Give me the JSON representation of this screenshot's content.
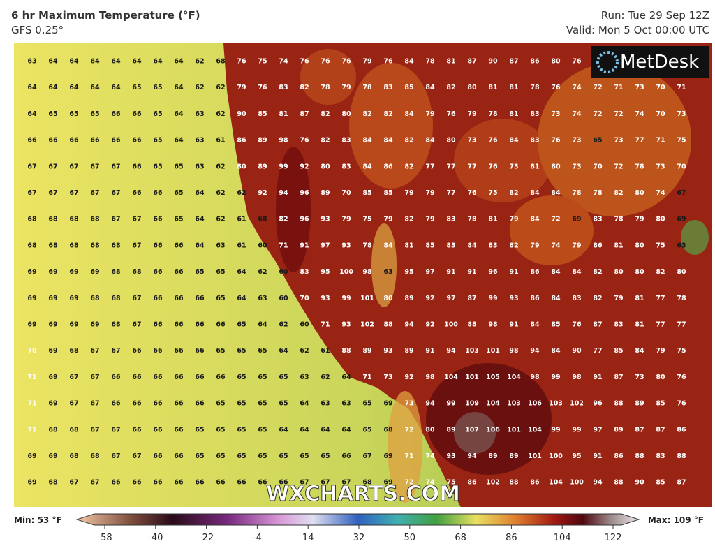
{
  "header": {
    "title": "6 hr Maximum Temperature (°F)",
    "subtitle": "GFS 0.25°",
    "run": "Run: Tue 29 Sep 12Z",
    "valid": "Valid: Mon 5 Oct 00:00 UTC"
  },
  "logo": "MetDesk",
  "watermark": "WXCHARTS.COM",
  "grid": [
    [
      63,
      64,
      64,
      64,
      64,
      64,
      64,
      64,
      62,
      68,
      76,
      75,
      74,
      76,
      76,
      76,
      79,
      76,
      84,
      78,
      81,
      87,
      90,
      87,
      86,
      80,
      76,
      null,
      null,
      null,
      null,
      null
    ],
    [
      64,
      64,
      64,
      64,
      64,
      65,
      65,
      64,
      62,
      62,
      79,
      76,
      83,
      82,
      78,
      79,
      78,
      83,
      85,
      84,
      82,
      80,
      81,
      81,
      78,
      76,
      74,
      72,
      71,
      73,
      70,
      71
    ],
    [
      64,
      65,
      65,
      65,
      66,
      66,
      65,
      64,
      63,
      62,
      90,
      85,
      81,
      87,
      82,
      80,
      82,
      82,
      84,
      79,
      76,
      79,
      78,
      81,
      83,
      73,
      74,
      72,
      72,
      74,
      70,
      73
    ],
    [
      66,
      66,
      66,
      66,
      66,
      66,
      65,
      64,
      63,
      61,
      86,
      89,
      98,
      76,
      82,
      83,
      84,
      84,
      82,
      84,
      80,
      73,
      76,
      84,
      83,
      76,
      73,
      65,
      73,
      77,
      71,
      75
    ],
    [
      67,
      67,
      67,
      67,
      67,
      66,
      65,
      65,
      63,
      62,
      80,
      89,
      99,
      92,
      80,
      83,
      84,
      86,
      82,
      77,
      77,
      77,
      76,
      73,
      81,
      80,
      73,
      70,
      72,
      78,
      73,
      70
    ],
    [
      67,
      67,
      67,
      67,
      67,
      66,
      66,
      65,
      64,
      62,
      62,
      92,
      94,
      96,
      89,
      70,
      85,
      85,
      79,
      79,
      77,
      76,
      75,
      82,
      84,
      84,
      78,
      78,
      82,
      80,
      74,
      67
    ],
    [
      68,
      68,
      68,
      68,
      67,
      67,
      66,
      65,
      64,
      62,
      61,
      68,
      82,
      96,
      93,
      79,
      75,
      79,
      82,
      79,
      83,
      78,
      81,
      79,
      84,
      72,
      69,
      83,
      78,
      79,
      80,
      69
    ],
    [
      68,
      68,
      68,
      68,
      68,
      67,
      66,
      66,
      64,
      63,
      61,
      60,
      71,
      91,
      97,
      93,
      78,
      84,
      81,
      85,
      83,
      84,
      83,
      82,
      79,
      74,
      79,
      86,
      81,
      80,
      75,
      63
    ],
    [
      69,
      69,
      69,
      69,
      68,
      68,
      66,
      66,
      65,
      65,
      64,
      62,
      60,
      83,
      95,
      100,
      98,
      63,
      95,
      97,
      91,
      91,
      96,
      91,
      86,
      84,
      84,
      82,
      80,
      80,
      82,
      80
    ],
    [
      69,
      69,
      69,
      68,
      68,
      67,
      66,
      66,
      66,
      65,
      64,
      63,
      60,
      70,
      93,
      99,
      101,
      80,
      89,
      92,
      97,
      87,
      99,
      93,
      86,
      84,
      83,
      82,
      79,
      81,
      77,
      78
    ],
    [
      69,
      69,
      69,
      69,
      68,
      67,
      66,
      66,
      66,
      66,
      65,
      64,
      62,
      60,
      71,
      93,
      102,
      88,
      94,
      92,
      100,
      88,
      98,
      91,
      84,
      85,
      76,
      87,
      83,
      81,
      77,
      77
    ],
    [
      70,
      69,
      68,
      67,
      67,
      66,
      66,
      66,
      66,
      65,
      65,
      65,
      64,
      62,
      61,
      88,
      89,
      93,
      89,
      91,
      94,
      103,
      101,
      98,
      94,
      84,
      90,
      77,
      85,
      84,
      79,
      75
    ],
    [
      71,
      69,
      67,
      67,
      66,
      66,
      66,
      66,
      66,
      66,
      65,
      65,
      65,
      63,
      62,
      64,
      71,
      73,
      92,
      98,
      104,
      101,
      105,
      104,
      98,
      99,
      98,
      91,
      87,
      73,
      80,
      76
    ],
    [
      71,
      69,
      67,
      67,
      66,
      66,
      66,
      66,
      66,
      65,
      65,
      65,
      65,
      64,
      63,
      63,
      65,
      69,
      73,
      94,
      99,
      109,
      104,
      103,
      106,
      103,
      102,
      96,
      88,
      89,
      85,
      76
    ],
    [
      71,
      68,
      68,
      67,
      67,
      66,
      66,
      66,
      65,
      65,
      65,
      65,
      64,
      64,
      64,
      64,
      65,
      68,
      72,
      80,
      89,
      107,
      106,
      101,
      104,
      99,
      99,
      97,
      89,
      87,
      87,
      86
    ],
    [
      69,
      69,
      68,
      68,
      67,
      67,
      66,
      66,
      65,
      65,
      65,
      65,
      65,
      65,
      65,
      66,
      67,
      69,
      71,
      74,
      93,
      94,
      89,
      89,
      101,
      100,
      95,
      91,
      86,
      88,
      83,
      88
    ],
    [
      69,
      68,
      67,
      67,
      66,
      66,
      66,
      66,
      66,
      66,
      66,
      66,
      66,
      67,
      67,
      67,
      68,
      69,
      72,
      74,
      75,
      86,
      102,
      88,
      86,
      104,
      100,
      94,
      88,
      90,
      85,
      87
    ]
  ],
  "legend": {
    "min": "Min: 53 °F",
    "max": "Max: 109 °F",
    "ticks": [
      -58,
      -40,
      -22,
      -4,
      14,
      32,
      50,
      68,
      86,
      104,
      122
    ]
  }
}
